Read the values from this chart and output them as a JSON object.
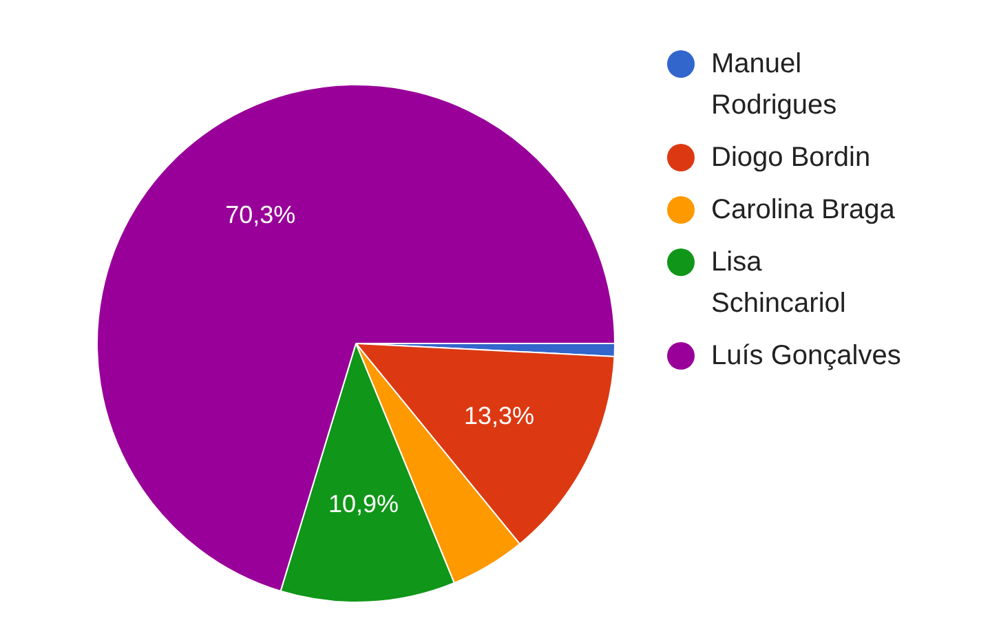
{
  "chart_data": {
    "type": "pie",
    "categories": [
      "Manuel Rodrigues",
      "Diogo Bordin",
      "Carolina Braga",
      "Lisa Schincariol",
      "Luís Gonçalves"
    ],
    "values": [
      0.8,
      13.3,
      4.7,
      10.9,
      70.3
    ],
    "colors": [
      "#3366cc",
      "#dc3912",
      "#ff9900",
      "#109618",
      "#990099"
    ],
    "value_labels": [
      null,
      "13,3%",
      null,
      "10,9%",
      "70,3%"
    ],
    "legend": "right"
  }
}
